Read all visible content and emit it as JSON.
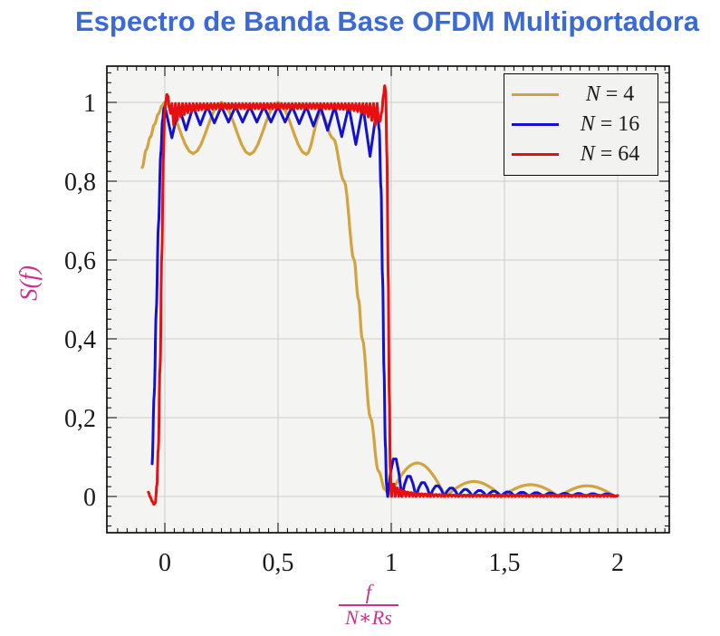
{
  "title": {
    "text": "Espectro de Banda Base OFDM Multiportadora",
    "color": "#3B6AD6"
  },
  "colors": {
    "page_background": "#FFFFFF",
    "plot_background": "#F4F4F2",
    "grid": "#CDCDCD",
    "frame": "#000000",
    "tick_label": "#1a1a1a",
    "axis_label_magenta": "#C8338C",
    "legend_background": "#F2F2F0",
    "legend_border": "#0A0A0A"
  },
  "axes": {
    "x": {
      "major_ticks": [
        {
          "v": 0,
          "label": "0"
        },
        {
          "v": 0.5,
          "label": "0,5"
        },
        {
          "v": 1,
          "label": "1"
        },
        {
          "v": 1.5,
          "label": "1,5"
        },
        {
          "v": 2,
          "label": "2"
        }
      ],
      "minor_step": 0.0416667,
      "label_numerator": "f",
      "label_denominator": "N∗Rs"
    },
    "y": {
      "major_ticks": [
        {
          "v": 0,
          "label": "0"
        },
        {
          "v": 0.2,
          "label": "0,2"
        },
        {
          "v": 0.4,
          "label": "0,4"
        },
        {
          "v": 0.6,
          "label": "0,6"
        },
        {
          "v": 0.8,
          "label": "0,8"
        },
        {
          "v": 1,
          "label": "1"
        }
      ],
      "minor_step": 0.025,
      "label": "S(f)"
    }
  },
  "legend": {
    "items": [
      {
        "variable": "N",
        "rest": " = 4",
        "color": "#D2A33F"
      },
      {
        "variable": "N",
        "rest": " = 16",
        "color": "#1212D0"
      },
      {
        "variable": "N",
        "rest": " = 64",
        "color": "#E61010"
      }
    ]
  },
  "chart_data": {
    "type": "line",
    "title": "Espectro de Banda Base OFDM Multiportadora",
    "xlabel": "f/(N*Rs)",
    "ylabel": "S(f)",
    "xlim": [
      -0.256,
      2.228
    ],
    "ylim": [
      -0.092,
      1.092
    ],
    "grid": true,
    "legend_position": "top-right",
    "series": [
      {
        "name": "N = 4",
        "N": 4,
        "color": "#D2A33F",
        "stroke_width": 3.2,
        "smooth": true,
        "path": [
          [
            -0.1,
            0.835
          ],
          [
            -0.082,
            0.88
          ],
          [
            -0.064,
            0.912
          ],
          [
            -0.046,
            0.944
          ],
          [
            -0.028,
            0.971
          ],
          [
            -0.012,
            0.992
          ],
          [
            0.0,
            1.0
          ],
          [
            0.125,
            0.87
          ],
          [
            0.25,
            1.0
          ],
          [
            0.375,
            0.868
          ],
          [
            0.5,
            1.0
          ],
          [
            0.625,
            0.868
          ],
          [
            0.69,
            0.973
          ],
          [
            0.744,
            0.908
          ],
          [
            0.792,
            0.8
          ],
          [
            0.836,
            0.6
          ],
          [
            0.855,
            0.5
          ],
          [
            0.872,
            0.4
          ],
          [
            0.908,
            0.2
          ],
          [
            0.944,
            0.064
          ],
          [
            0.972,
            0.018
          ],
          [
            0.992,
            0.002
          ]
        ],
        "lobes": {
          "start": 0.99,
          "width": 0.25,
          "amps": [
            0.085,
            0.038,
            0.03,
            0.027
          ]
        }
      },
      {
        "name": "N = 16",
        "N": 16,
        "color": "#1212D0",
        "stroke_width": 3.0,
        "pre": [
          [
            -0.056,
            0.083
          ],
          [
            -0.047,
            0.26
          ],
          [
            -0.038,
            0.47
          ],
          [
            -0.028,
            0.69
          ],
          [
            -0.018,
            0.87
          ],
          [
            -0.01,
            0.955
          ],
          [
            -0.004,
            0.985
          ]
        ],
        "ripple": {
          "k0": 0,
          "k1": 15,
          "peak": 0.99,
          "dips": [
            0.91,
            0.93,
            0.943,
            0.948,
            0.95,
            0.95,
            0.95,
            0.95,
            0.95,
            0.946,
            0.94,
            0.929,
            0.913,
            0.893,
            0.863
          ]
        },
        "fall": [
          [
            0.9375,
            0.99
          ],
          [
            0.947,
            0.93
          ],
          [
            0.955,
            0.78
          ],
          [
            0.962,
            0.55
          ],
          [
            0.968,
            0.32
          ],
          [
            0.974,
            0.13
          ],
          [
            0.979,
            0.03
          ],
          [
            0.984,
            0.002
          ]
        ],
        "lobes": {
          "start": 0.984,
          "width": 0.0625,
          "amps": [
            0.1,
            0.054,
            0.037,
            0.028,
            0.0225,
            0.0185,
            0.0158,
            0.0138,
            0.0122,
            0.0109,
            0.0099,
            0.009,
            0.0083,
            0.0077,
            0.0072,
            0.0067
          ]
        }
      },
      {
        "name": "N = 64",
        "N": 64,
        "color": "#E61010",
        "stroke_width": 3.0,
        "pre": [
          [
            -0.073,
            0.011
          ],
          [
            -0.064,
            -0.002
          ],
          [
            -0.055,
            -0.013
          ],
          [
            -0.048,
            -0.02
          ],
          [
            -0.042,
            -0.016
          ],
          [
            -0.035,
            0.03
          ],
          [
            -0.029,
            0.12
          ],
          [
            -0.021,
            0.33
          ],
          [
            -0.013,
            0.62
          ],
          [
            -0.006,
            0.87
          ],
          [
            -0.001,
            0.97
          ],
          [
            0.004,
            1.002
          ],
          [
            0.009,
            1.02
          ],
          [
            0.014,
            1.015
          ],
          [
            0.02,
            0.985
          ],
          [
            0.026,
            0.972
          ]
        ],
        "ripple": {
          "k0": 2,
          "k1": 60,
          "peak": 0.997,
          "dip_formula": {
            "mid": 0.013,
            "edge": 0.05,
            "tau": 0.045
          }
        },
        "fall": [
          [
            0.9375,
            0.992
          ],
          [
            0.943,
            0.958
          ],
          [
            0.95,
            0.952
          ],
          [
            0.958,
            0.975
          ],
          [
            0.966,
            1.018
          ],
          [
            0.971,
            1.042
          ],
          [
            0.9755,
            1.028
          ],
          [
            0.981,
            0.86
          ],
          [
            0.9865,
            0.56
          ],
          [
            0.9915,
            0.25
          ],
          [
            0.996,
            0.07
          ],
          [
            0.9995,
            0.01
          ],
          [
            1.002,
            0.001
          ]
        ],
        "lobes": {
          "start": 1.002,
          "width": 0.015625,
          "amp_formula": {
            "a0": 0.036,
            "k": 0.45,
            "min": 0.004,
            "count": 63
          }
        }
      }
    ]
  }
}
